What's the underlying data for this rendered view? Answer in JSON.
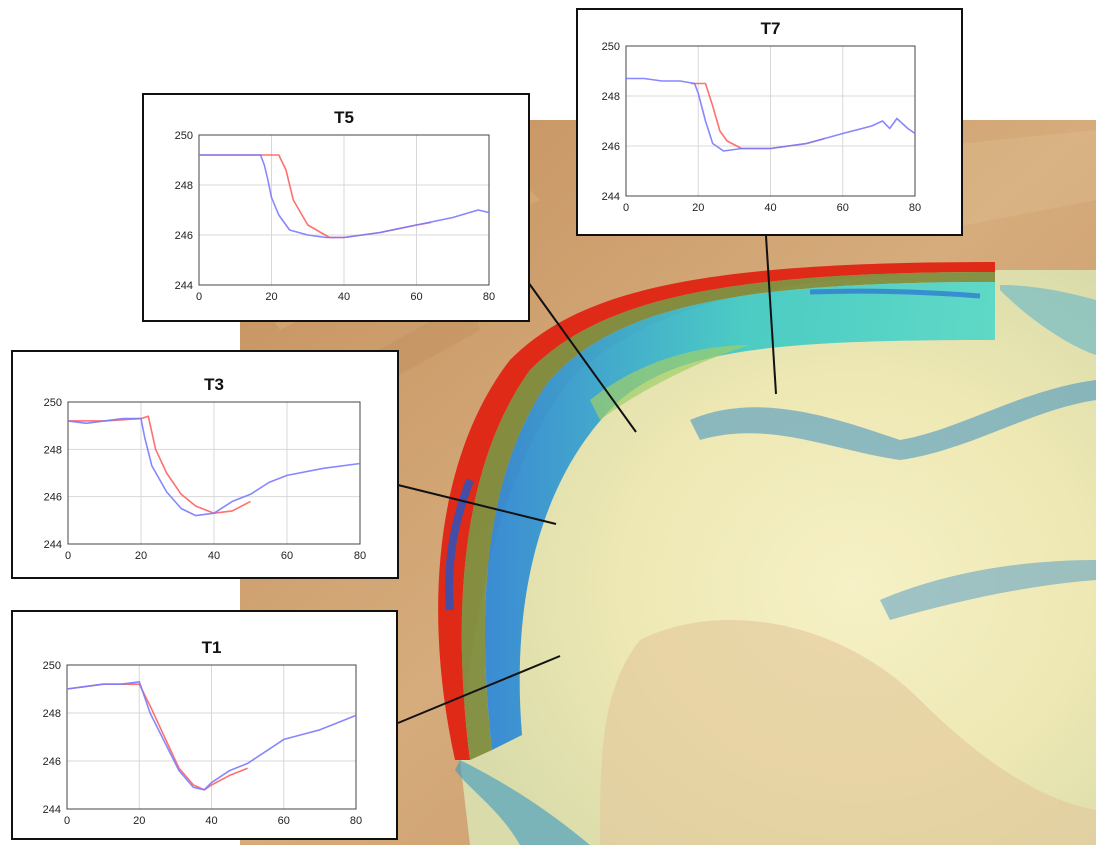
{
  "figure": {
    "colors": {
      "background_terrain": "#c89a68",
      "floodplain_light": "#f2edc0",
      "channel_cyan": "#3fd0c8",
      "channel_blue": "#2a7fd4",
      "bank_red": "#e02018",
      "survey_red": "#ff6060",
      "model_blue": "#7a7aff",
      "leader_line": "#111111"
    }
  },
  "chart_data": [
    {
      "type": "line",
      "title": "T5",
      "xlim": [
        0,
        80
      ],
      "ylim": [
        244,
        250
      ],
      "xticks": [
        "0",
        "20",
        "40",
        "60",
        "80"
      ],
      "yticks": [
        "250",
        "248",
        "246",
        "244"
      ],
      "grid": true,
      "series": [
        {
          "color": "#ff6060",
          "x": [
            0,
            10,
            20,
            22,
            24,
            26,
            30,
            36,
            40,
            50,
            60,
            64
          ],
          "y": [
            249.2,
            249.2,
            249.2,
            249.2,
            248.6,
            247.4,
            246.4,
            245.9,
            245.9,
            246.1,
            246.4,
            246.5
          ]
        },
        {
          "color": "#7a7aff",
          "x": [
            0,
            10,
            17,
            18,
            19,
            20,
            22,
            25,
            30,
            35,
            40,
            50,
            60,
            70,
            77,
            80
          ],
          "y": [
            249.2,
            249.2,
            249.2,
            248.8,
            248.2,
            247.5,
            246.8,
            246.2,
            246.0,
            245.9,
            245.9,
            246.1,
            246.4,
            246.7,
            247.0,
            246.9
          ]
        }
      ]
    },
    {
      "type": "line",
      "title": "T7",
      "xlim": [
        0,
        80
      ],
      "ylim": [
        244,
        250
      ],
      "xticks": [
        "0",
        "20",
        "40",
        "60",
        "80"
      ],
      "yticks": [
        "250",
        "248",
        "246",
        "244"
      ],
      "grid": true,
      "series": [
        {
          "color": "#ff6060",
          "x": [
            18,
            22,
            24,
            26,
            28,
            32,
            40,
            50,
            55
          ],
          "y": [
            248.5,
            248.5,
            247.6,
            246.6,
            246.2,
            245.9,
            245.9,
            246.1,
            246.3
          ]
        },
        {
          "color": "#7a7aff",
          "x": [
            0,
            5,
            10,
            15,
            19,
            20,
            22,
            24,
            27,
            32,
            40,
            50,
            60,
            68,
            71,
            73,
            75,
            78,
            80
          ],
          "y": [
            248.7,
            248.7,
            248.6,
            248.6,
            248.5,
            248.1,
            247.0,
            246.1,
            245.8,
            245.9,
            245.9,
            246.1,
            246.5,
            246.8,
            247.0,
            246.7,
            247.1,
            246.7,
            246.5
          ]
        }
      ]
    },
    {
      "type": "line",
      "title": "T3",
      "xlim": [
        0,
        80
      ],
      "ylim": [
        244,
        250
      ],
      "xticks": [
        "0",
        "20",
        "40",
        "60",
        "80"
      ],
      "yticks": [
        "250",
        "248",
        "246",
        "244"
      ],
      "grid": true,
      "series": [
        {
          "color": "#ff6060",
          "x": [
            0,
            10,
            20,
            22,
            24,
            27,
            31,
            35,
            40,
            45,
            50
          ],
          "y": [
            249.2,
            249.2,
            249.3,
            249.4,
            248.0,
            247.0,
            246.1,
            245.6,
            245.3,
            245.4,
            245.8
          ]
        },
        {
          "color": "#7a7aff",
          "x": [
            0,
            5,
            10,
            15,
            20,
            21,
            23,
            27,
            31,
            35,
            40,
            45,
            50,
            55,
            60,
            70,
            80
          ],
          "y": [
            249.2,
            249.1,
            249.2,
            249.3,
            249.3,
            248.5,
            247.3,
            246.2,
            245.5,
            245.2,
            245.3,
            245.8,
            246.1,
            246.6,
            246.9,
            247.2,
            247.4
          ]
        }
      ]
    },
    {
      "type": "line",
      "title": "T1",
      "xlim": [
        0,
        80
      ],
      "ylim": [
        244,
        250
      ],
      "xticks": [
        "0",
        "20",
        "40",
        "60",
        "80"
      ],
      "yticks": [
        "250",
        "248",
        "246",
        "244"
      ],
      "grid": true,
      "series": [
        {
          "color": "#ff6060",
          "x": [
            0,
            10,
            20,
            23,
            27,
            31,
            35,
            38,
            40,
            45,
            50
          ],
          "y": [
            249.0,
            249.2,
            249.2,
            248.3,
            247.0,
            245.7,
            245.0,
            244.8,
            245.0,
            245.4,
            245.7
          ]
        },
        {
          "color": "#7a7aff",
          "x": [
            0,
            5,
            10,
            15,
            20,
            23,
            27,
            31,
            35,
            38,
            40,
            45,
            50,
            55,
            60,
            65,
            70,
            75,
            80
          ],
          "y": [
            249.0,
            249.1,
            249.2,
            249.2,
            249.3,
            248.0,
            246.8,
            245.6,
            244.9,
            244.8,
            245.1,
            245.6,
            245.9,
            246.4,
            246.9,
            247.1,
            247.3,
            247.6,
            247.9
          ]
        }
      ]
    }
  ]
}
